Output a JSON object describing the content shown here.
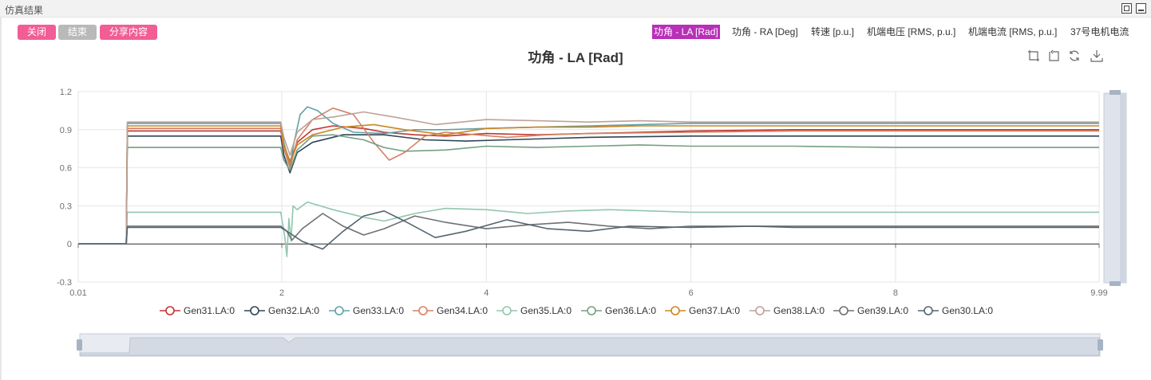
{
  "panel": {
    "title": "仿真结果"
  },
  "buttons": {
    "close": "关闭",
    "end": "结束",
    "share": "分享内容"
  },
  "tabs": [
    {
      "label": "功角 - LA [Rad]",
      "active": true
    },
    {
      "label": "功角 - RA [Deg]",
      "active": false
    },
    {
      "label": "转速 [p.u.]",
      "active": false
    },
    {
      "label": "机端电压 [RMS, p.u.]",
      "active": false
    },
    {
      "label": "机端电流 [RMS, p.u.]",
      "active": false
    },
    {
      "label": "37号电机电流",
      "active": false
    }
  ],
  "toolbox": [
    "zoom-icon",
    "zoom-reset-icon",
    "restore-icon",
    "download-icon"
  ],
  "chart_data": {
    "type": "line",
    "title": "功角 - LA [Rad]",
    "xlabel": "",
    "ylabel": "",
    "xlim": [
      0.01,
      9.99
    ],
    "ylim": [
      -0.3,
      1.2
    ],
    "x_ticks": [
      "0.01",
      "2",
      "4",
      "6",
      "8",
      "9.99"
    ],
    "x_tick_values": [
      0.01,
      2,
      4,
      6,
      8,
      9.99
    ],
    "y_ticks": [
      "1.2",
      "0.9",
      "0.6",
      "0.3",
      "0",
      "-0.3"
    ],
    "y_tick_values": [
      1.2,
      0.9,
      0.6,
      0.3,
      0,
      -0.3
    ],
    "grid": true,
    "legend_position": "bottom",
    "series": [
      {
        "name": "Gen31.LA:0",
        "color": "#c23531",
        "points": [
          [
            0.01,
            0
          ],
          [
            0.48,
            0
          ],
          [
            0.49,
            0.89
          ],
          [
            1.99,
            0.89
          ],
          [
            2.02,
            0.78
          ],
          [
            2.08,
            0.65
          ],
          [
            2.15,
            0.8
          ],
          [
            2.3,
            0.9
          ],
          [
            2.5,
            0.93
          ],
          [
            2.8,
            0.91
          ],
          [
            3.0,
            0.88
          ],
          [
            3.3,
            0.86
          ],
          [
            3.6,
            0.85
          ],
          [
            4.0,
            0.87
          ],
          [
            4.5,
            0.86
          ],
          [
            5.0,
            0.87
          ],
          [
            5.5,
            0.88
          ],
          [
            6.0,
            0.89
          ],
          [
            7.0,
            0.9
          ],
          [
            8.0,
            0.9
          ],
          [
            9.0,
            0.9
          ],
          [
            9.99,
            0.9
          ]
        ]
      },
      {
        "name": "Gen32.LA:0",
        "color": "#2f4554",
        "points": [
          [
            0.01,
            0
          ],
          [
            0.48,
            0
          ],
          [
            0.49,
            0.85
          ],
          [
            1.99,
            0.85
          ],
          [
            2.02,
            0.7
          ],
          [
            2.08,
            0.56
          ],
          [
            2.15,
            0.72
          ],
          [
            2.3,
            0.8
          ],
          [
            2.6,
            0.86
          ],
          [
            3.0,
            0.86
          ],
          [
            3.4,
            0.82
          ],
          [
            3.8,
            0.81
          ],
          [
            4.2,
            0.82
          ],
          [
            4.6,
            0.83
          ],
          [
            5.0,
            0.84
          ],
          [
            6.0,
            0.85
          ],
          [
            7.0,
            0.85
          ],
          [
            8.0,
            0.85
          ],
          [
            9.99,
            0.85
          ]
        ]
      },
      {
        "name": "Gen33.LA:0",
        "color": "#61a0a8",
        "points": [
          [
            0.01,
            0
          ],
          [
            0.48,
            0
          ],
          [
            0.49,
            0.95
          ],
          [
            1.99,
            0.95
          ],
          [
            2.02,
            0.8
          ],
          [
            2.08,
            0.62
          ],
          [
            2.12,
            0.8
          ],
          [
            2.18,
            1.02
          ],
          [
            2.25,
            1.08
          ],
          [
            2.35,
            1.05
          ],
          [
            2.5,
            0.95
          ],
          [
            2.7,
            0.88
          ],
          [
            3.0,
            0.87
          ],
          [
            3.3,
            0.9
          ],
          [
            3.6,
            0.9
          ],
          [
            4.0,
            0.91
          ],
          [
            4.5,
            0.92
          ],
          [
            5.0,
            0.93
          ],
          [
            5.5,
            0.94
          ],
          [
            6.0,
            0.95
          ],
          [
            7.0,
            0.95
          ],
          [
            8.0,
            0.95
          ],
          [
            9.99,
            0.95
          ]
        ]
      },
      {
        "name": "Gen34.LA:0",
        "color": "#d48265",
        "points": [
          [
            0.01,
            0
          ],
          [
            0.48,
            0
          ],
          [
            0.49,
            0.91
          ],
          [
            1.99,
            0.91
          ],
          [
            2.02,
            0.75
          ],
          [
            2.08,
            0.6
          ],
          [
            2.15,
            0.82
          ],
          [
            2.3,
            0.98
          ],
          [
            2.5,
            1.07
          ],
          [
            2.7,
            1.02
          ],
          [
            2.9,
            0.8
          ],
          [
            3.05,
            0.66
          ],
          [
            3.2,
            0.72
          ],
          [
            3.4,
            0.85
          ],
          [
            3.6,
            0.88
          ],
          [
            3.9,
            0.86
          ],
          [
            4.2,
            0.84
          ],
          [
            4.6,
            0.86
          ],
          [
            5.0,
            0.87
          ],
          [
            6.0,
            0.88
          ],
          [
            7.0,
            0.89
          ],
          [
            8.0,
            0.89
          ],
          [
            9.99,
            0.89
          ]
        ]
      },
      {
        "name": "Gen35.LA:0",
        "color": "#91c7ae",
        "points": [
          [
            0.01,
            0
          ],
          [
            0.48,
            0
          ],
          [
            0.49,
            0.25
          ],
          [
            1.99,
            0.25
          ],
          [
            2.01,
            0.15
          ],
          [
            2.03,
            0.05
          ],
          [
            2.05,
            -0.1
          ],
          [
            2.07,
            0.2
          ],
          [
            2.09,
            0.02
          ],
          [
            2.11,
            0.3
          ],
          [
            2.15,
            0.27
          ],
          [
            2.25,
            0.33
          ],
          [
            2.5,
            0.27
          ],
          [
            2.8,
            0.21
          ],
          [
            3.0,
            0.18
          ],
          [
            3.3,
            0.24
          ],
          [
            3.6,
            0.28
          ],
          [
            4.0,
            0.27
          ],
          [
            4.4,
            0.24
          ],
          [
            4.8,
            0.26
          ],
          [
            5.2,
            0.27
          ],
          [
            5.6,
            0.26
          ],
          [
            6.0,
            0.25
          ],
          [
            7.0,
            0.25
          ],
          [
            8.0,
            0.25
          ],
          [
            9.99,
            0.25
          ]
        ]
      },
      {
        "name": "Gen36.LA:0",
        "color": "#749f83",
        "points": [
          [
            0.01,
            0
          ],
          [
            0.48,
            0
          ],
          [
            0.49,
            0.76
          ],
          [
            1.99,
            0.76
          ],
          [
            2.02,
            0.66
          ],
          [
            2.08,
            0.58
          ],
          [
            2.15,
            0.74
          ],
          [
            2.3,
            0.85
          ],
          [
            2.5,
            0.86
          ],
          [
            2.8,
            0.82
          ],
          [
            3.0,
            0.76
          ],
          [
            3.2,
            0.73
          ],
          [
            3.6,
            0.74
          ],
          [
            4.0,
            0.77
          ],
          [
            4.5,
            0.76
          ],
          [
            5.0,
            0.77
          ],
          [
            5.5,
            0.78
          ],
          [
            6.0,
            0.77
          ],
          [
            7.0,
            0.77
          ],
          [
            8.0,
            0.76
          ],
          [
            9.99,
            0.76
          ]
        ]
      },
      {
        "name": "Gen37.LA:0",
        "color": "#ca8622",
        "points": [
          [
            0.01,
            0
          ],
          [
            0.48,
            0
          ],
          [
            0.49,
            0.93
          ],
          [
            1.99,
            0.93
          ],
          [
            2.02,
            0.78
          ],
          [
            2.08,
            0.64
          ],
          [
            2.15,
            0.78
          ],
          [
            2.3,
            0.86
          ],
          [
            2.6,
            0.92
          ],
          [
            2.9,
            0.94
          ],
          [
            3.2,
            0.9
          ],
          [
            3.6,
            0.86
          ],
          [
            4.0,
            0.91
          ],
          [
            4.5,
            0.92
          ],
          [
            5.0,
            0.92
          ],
          [
            5.5,
            0.93
          ],
          [
            6.0,
            0.93
          ],
          [
            7.0,
            0.93
          ],
          [
            8.0,
            0.93
          ],
          [
            9.99,
            0.93
          ]
        ]
      },
      {
        "name": "Gen38.LA:0",
        "color": "#bda29a",
        "points": [
          [
            0.01,
            0
          ],
          [
            0.48,
            0
          ],
          [
            0.49,
            0.96
          ],
          [
            1.99,
            0.96
          ],
          [
            2.02,
            0.84
          ],
          [
            2.08,
            0.7
          ],
          [
            2.15,
            0.88
          ],
          [
            2.3,
            0.98
          ],
          [
            2.5,
            1.0
          ],
          [
            2.8,
            1.04
          ],
          [
            3.1,
            1.0
          ],
          [
            3.5,
            0.94
          ],
          [
            4.0,
            0.98
          ],
          [
            4.5,
            0.97
          ],
          [
            5.0,
            0.96
          ],
          [
            5.5,
            0.97
          ],
          [
            6.0,
            0.96
          ],
          [
            7.0,
            0.96
          ],
          [
            8.0,
            0.96
          ],
          [
            9.99,
            0.96
          ]
        ]
      },
      {
        "name": "Gen39.LA:0",
        "color": "#6e7074",
        "points": [
          [
            0.01,
            0
          ],
          [
            0.48,
            0
          ],
          [
            0.49,
            0.14
          ],
          [
            1.99,
            0.14
          ],
          [
            2.05,
            0.1
          ],
          [
            2.1,
            0.03
          ],
          [
            2.2,
            0.12
          ],
          [
            2.4,
            0.24
          ],
          [
            2.6,
            0.14
          ],
          [
            2.8,
            0.07
          ],
          [
            3.0,
            0.12
          ],
          [
            3.3,
            0.22
          ],
          [
            3.6,
            0.17
          ],
          [
            4.0,
            0.12
          ],
          [
            4.4,
            0.15
          ],
          [
            4.8,
            0.17
          ],
          [
            5.2,
            0.14
          ],
          [
            5.6,
            0.12
          ],
          [
            6.0,
            0.14
          ],
          [
            7.0,
            0.14
          ],
          [
            8.0,
            0.14
          ],
          [
            9.99,
            0.14
          ]
        ]
      },
      {
        "name": "Gen30.LA:0",
        "color": "#546570",
        "points": [
          [
            0.01,
            0
          ],
          [
            0.48,
            0
          ],
          [
            0.49,
            0.13
          ],
          [
            1.99,
            0.13
          ],
          [
            2.05,
            0.1
          ],
          [
            2.2,
            0.02
          ],
          [
            2.4,
            -0.04
          ],
          [
            2.6,
            0.1
          ],
          [
            2.8,
            0.22
          ],
          [
            3.0,
            0.26
          ],
          [
            3.2,
            0.18
          ],
          [
            3.5,
            0.05
          ],
          [
            3.8,
            0.1
          ],
          [
            4.2,
            0.19
          ],
          [
            4.6,
            0.12
          ],
          [
            5.0,
            0.1
          ],
          [
            5.4,
            0.14
          ],
          [
            6.0,
            0.13
          ],
          [
            6.6,
            0.14
          ],
          [
            7.0,
            0.13
          ],
          [
            8.0,
            0.13
          ],
          [
            9.99,
            0.13
          ]
        ]
      }
    ]
  }
}
